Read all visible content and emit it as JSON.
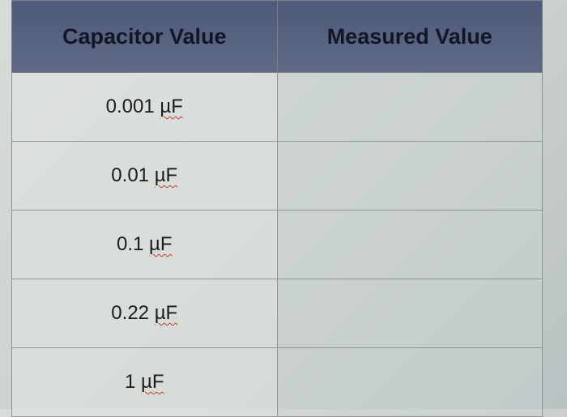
{
  "table": {
    "headers": [
      "Capacitor Value",
      "Measured Value"
    ],
    "rows": [
      [
        "0.001 µF"
      ],
      [
        "0.01 µF"
      ],
      [
        "0.1 µF"
      ],
      [
        "0.22 µF"
      ],
      [
        "1 µF"
      ]
    ]
  }
}
